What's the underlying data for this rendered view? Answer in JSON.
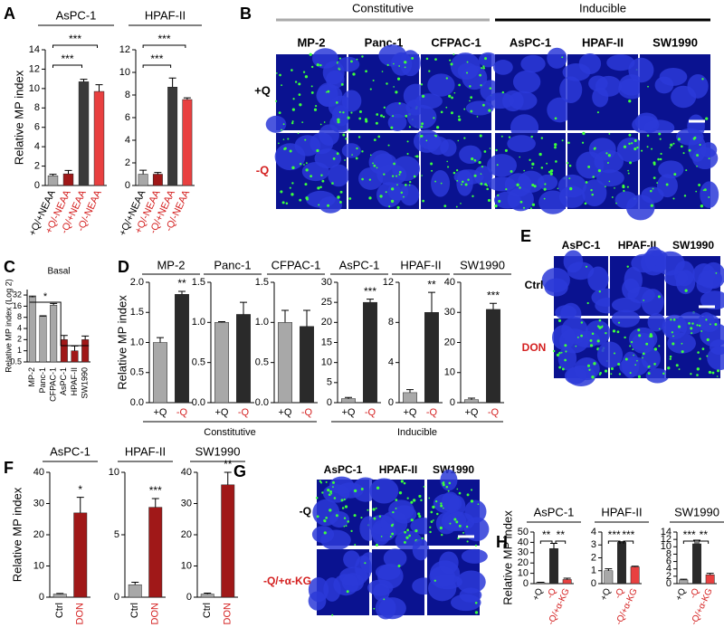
{
  "panels": {
    "letters": [
      "A",
      "B",
      "C",
      "D",
      "E",
      "F",
      "G",
      "H"
    ],
    "B": {
      "groups": [
        "Constitutive",
        "Inducible"
      ],
      "columns": [
        "MP-2",
        "Panc-1",
        "CFPAC-1",
        "AsPC-1",
        "HPAF-II",
        "SW1990"
      ],
      "rows": [
        "+Q",
        "-Q"
      ],
      "row_colors": [
        "#000000",
        "#d42020"
      ]
    },
    "D": {
      "groups": [
        "Constitutive",
        "Inducible"
      ]
    },
    "E": {
      "columns": [
        "AsPC-1",
        "HPAF-II",
        "SW1990"
      ],
      "rows": [
        "Ctrl",
        "DON"
      ],
      "row_colors": [
        "#000000",
        "#d42020"
      ]
    },
    "G": {
      "columns": [
        "AsPC-1",
        "HPAF-II",
        "SW1990"
      ],
      "rows": [
        "-Q",
        "-Q/+α-KG"
      ],
      "row_colors": [
        "#000000",
        "#d42020"
      ]
    }
  },
  "chart_data": [
    {
      "type": "bar",
      "title": "AsPC-1",
      "y_label": "Relative MP index",
      "categories": [
        "+Q/+NEAA",
        "+Q/-NEAA",
        "-Q/+NEAA",
        "-Q/-NEAA"
      ],
      "category_colors": [
        "#000000",
        "#d42020",
        "#d42020",
        "#d42020"
      ],
      "values": [
        1,
        1.2,
        10.7,
        9.7
      ],
      "errors": [
        0.15,
        0.35,
        0.25,
        0.7
      ],
      "colors": [
        "#a8a8a8",
        "#a01818",
        "#3a3a3a",
        "#e84040"
      ],
      "ylim": [
        0,
        14
      ],
      "yticks": [
        0,
        2,
        4,
        6,
        8,
        10,
        12,
        14
      ],
      "annotations": [
        "***",
        "***"
      ]
    },
    {
      "type": "bar",
      "title": "HPAF-II",
      "categories": [
        "+Q/+NEAA",
        "+Q/-NEAA",
        "-Q/+NEAA",
        "-Q/-NEAA"
      ],
      "category_colors": [
        "#000000",
        "#d42020",
        "#d42020",
        "#d42020"
      ],
      "values": [
        1,
        1,
        8.7,
        7.6
      ],
      "errors": [
        0.35,
        0.15,
        0.8,
        0.15
      ],
      "colors": [
        "#a8a8a8",
        "#a01818",
        "#3a3a3a",
        "#e84040"
      ],
      "ylim": [
        0,
        12
      ],
      "yticks": [
        0,
        2,
        4,
        6,
        8,
        10,
        12
      ],
      "annotations": [
        "***",
        "***"
      ]
    },
    {
      "type": "bar",
      "title": "Basal",
      "y_label": "Relative MP index (Log 2)",
      "log_base": 2,
      "categories": [
        "MP-2",
        "Panc-1",
        "CFPAC-1",
        "AsPC-1",
        "HPAF-II",
        "SW1990"
      ],
      "category_colors": [
        "#000000",
        "#000000",
        "#000000",
        "#000000",
        "#000000",
        "#000000"
      ],
      "values": [
        28,
        8.5,
        17,
        2,
        1,
        2
      ],
      "errors": [
        2,
        0.3,
        2,
        0.6,
        0.35,
        0.5
      ],
      "colors": [
        "#a8a8a8",
        "#a8a8a8",
        "#a8a8a8",
        "#a01818",
        "#a01818",
        "#a01818"
      ],
      "ylim": [
        0.5,
        45
      ],
      "yticks": [
        0.5,
        1,
        2,
        4,
        8,
        16,
        32
      ],
      "annotations": [
        "*"
      ]
    },
    {
      "type": "bar",
      "title": "MP-2",
      "y_label": "Relative MP index",
      "categories": [
        "+Q",
        "-Q"
      ],
      "category_colors": [
        "#000000",
        "#d42020"
      ],
      "values": [
        1,
        1.8
      ],
      "errors": [
        0.08,
        0.05
      ],
      "colors": [
        "#a8a8a8",
        "#2a2a2a"
      ],
      "ylim": [
        0,
        2
      ],
      "yticks": [
        {
          "value": 0,
          "label": "0.0"
        },
        {
          "value": 0.5,
          "label": "0.5"
        },
        {
          "value": 1,
          "label": "1.0"
        },
        {
          "value": 1.5,
          "label": "1.5"
        },
        {
          "value": 2,
          "label": "2.0"
        }
      ],
      "annotations": [
        "**"
      ]
    },
    {
      "type": "bar",
      "title": "Panc-1",
      "categories": [
        "+Q",
        "-Q"
      ],
      "category_colors": [
        "#000000",
        "#d42020"
      ],
      "values": [
        1,
        1.1
      ],
      "errors": [
        0.01,
        0.15
      ],
      "colors": [
        "#a8a8a8",
        "#2a2a2a"
      ],
      "ylim": [
        0,
        1.5
      ],
      "yticks": [
        {
          "value": 0,
          "label": "0.0"
        },
        {
          "value": 0.5,
          "label": "0.5"
        },
        {
          "value": 1,
          "label": "1.0"
        },
        {
          "value": 1.5,
          "label": "1.5"
        }
      ]
    },
    {
      "type": "bar",
      "title": "CFPAC-1",
      "categories": [
        "+Q",
        "-Q"
      ],
      "category_colors": [
        "#000000",
        "#d42020"
      ],
      "values": [
        1,
        0.95
      ],
      "errors": [
        0.15,
        0.2
      ],
      "colors": [
        "#a8a8a8",
        "#2a2a2a"
      ],
      "ylim": [
        0,
        1.5
      ],
      "yticks": [
        {
          "value": 0,
          "label": "0.0"
        },
        {
          "value": 0.5,
          "label": "0.5"
        },
        {
          "value": 1,
          "label": "1.0"
        },
        {
          "value": 1.5,
          "label": "1.5"
        }
      ]
    },
    {
      "type": "bar",
      "title": "AsPC-1",
      "categories": [
        "+Q",
        "-Q"
      ],
      "category_colors": [
        "#000000",
        "#d42020"
      ],
      "values": [
        1,
        25
      ],
      "errors": [
        0.3,
        0.8
      ],
      "colors": [
        "#a8a8a8",
        "#2a2a2a"
      ],
      "ylim": [
        0,
        30
      ],
      "yticks": [
        0,
        5,
        10,
        15,
        20,
        25,
        30
      ],
      "annotations": [
        "***"
      ]
    },
    {
      "type": "bar",
      "title": "HPAF-II",
      "categories": [
        "+Q",
        "-Q"
      ],
      "category_colors": [
        "#000000",
        "#d42020"
      ],
      "values": [
        1,
        9
      ],
      "errors": [
        0.3,
        2
      ],
      "colors": [
        "#a8a8a8",
        "#2a2a2a"
      ],
      "ylim": [
        0,
        12
      ],
      "yticks": [
        0,
        4,
        8,
        12
      ],
      "annotations": [
        "**"
      ]
    },
    {
      "type": "bar",
      "title": "SW1990",
      "categories": [
        "+Q",
        "-Q"
      ],
      "category_colors": [
        "#000000",
        "#d42020"
      ],
      "values": [
        1,
        31
      ],
      "errors": [
        0.5,
        2
      ],
      "colors": [
        "#a8a8a8",
        "#2a2a2a"
      ],
      "ylim": [
        0,
        40
      ],
      "yticks": [
        0,
        10,
        20,
        30,
        40
      ],
      "annotations": [
        "***"
      ]
    },
    {
      "type": "bar",
      "title": "AsPC-1",
      "y_label": "Relative MP index",
      "categories": [
        "Ctrl",
        "DON"
      ],
      "category_colors": [
        "#000000",
        "#d42020"
      ],
      "values": [
        1,
        27
      ],
      "errors": [
        0.2,
        5
      ],
      "colors": [
        "#a8a8a8",
        "#a01818"
      ],
      "ylim": [
        0,
        40
      ],
      "yticks": [
        0,
        10,
        20,
        30,
        40
      ],
      "annotations": [
        "*"
      ]
    },
    {
      "type": "bar",
      "title": "HPAF-II",
      "categories": [
        "Ctrl",
        "DON"
      ],
      "category_colors": [
        "#000000",
        "#d42020"
      ],
      "values": [
        1,
        7.2
      ],
      "errors": [
        0.2,
        0.7
      ],
      "colors": [
        "#a8a8a8",
        "#a01818"
      ],
      "ylim": [
        0,
        10
      ],
      "yticks": [
        0,
        5,
        10
      ],
      "annotations": [
        "***"
      ]
    },
    {
      "type": "bar",
      "title": "SW1990",
      "categories": [
        "Ctrl",
        "DON"
      ],
      "category_colors": [
        "#000000",
        "#d42020"
      ],
      "values": [
        1,
        36
      ],
      "errors": [
        0.3,
        4
      ],
      "colors": [
        "#a8a8a8",
        "#a01818"
      ],
      "ylim": [
        0,
        40
      ],
      "yticks": [
        0,
        10,
        20,
        30,
        40
      ],
      "annotations": [
        "**"
      ]
    },
    {
      "type": "bar",
      "title": "AsPC-1",
      "y_label": "Relative MP index",
      "categories": [
        "+Q",
        "-Q",
        "-Q/+α-KG"
      ],
      "category_colors": [
        "#000000",
        "#d42020",
        "#d42020"
      ],
      "values": [
        1,
        34,
        4
      ],
      "errors": [
        0.3,
        5,
        1.3
      ],
      "colors": [
        "#a8a8a8",
        "#2a2a2a",
        "#e84040"
      ],
      "ylim": [
        0,
        50
      ],
      "yticks": [
        0,
        10,
        20,
        30,
        40,
        50
      ],
      "annotations": [
        "**",
        "**"
      ]
    },
    {
      "type": "bar",
      "title": "HPAF-II",
      "categories": [
        "+Q",
        "-Q",
        "-Q/+α-KG"
      ],
      "category_colors": [
        "#000000",
        "#d42020",
        "#d42020"
      ],
      "values": [
        1,
        3.2,
        1.3
      ],
      "errors": [
        0.15,
        0.05,
        0.05
      ],
      "colors": [
        "#a8a8a8",
        "#2a2a2a",
        "#e84040"
      ],
      "ylim": [
        0,
        4
      ],
      "yticks": [
        0,
        1,
        2,
        3,
        4
      ],
      "annotations": [
        "***",
        "***"
      ]
    },
    {
      "type": "bar",
      "title": "SW1990",
      "categories": [
        "+Q",
        "-Q",
        "-Q/+α-KG"
      ],
      "category_colors": [
        "#000000",
        "#d42020",
        "#d42020"
      ],
      "values": [
        1,
        10.8,
        2.4
      ],
      "errors": [
        0.2,
        1,
        0.4
      ],
      "colors": [
        "#a8a8a8",
        "#2a2a2a",
        "#e84040"
      ],
      "ylim": [
        0,
        14
      ],
      "yticks": [
        0,
        2,
        4,
        6,
        8,
        10,
        12,
        14
      ],
      "annotations": [
        "***",
        "**"
      ]
    }
  ]
}
